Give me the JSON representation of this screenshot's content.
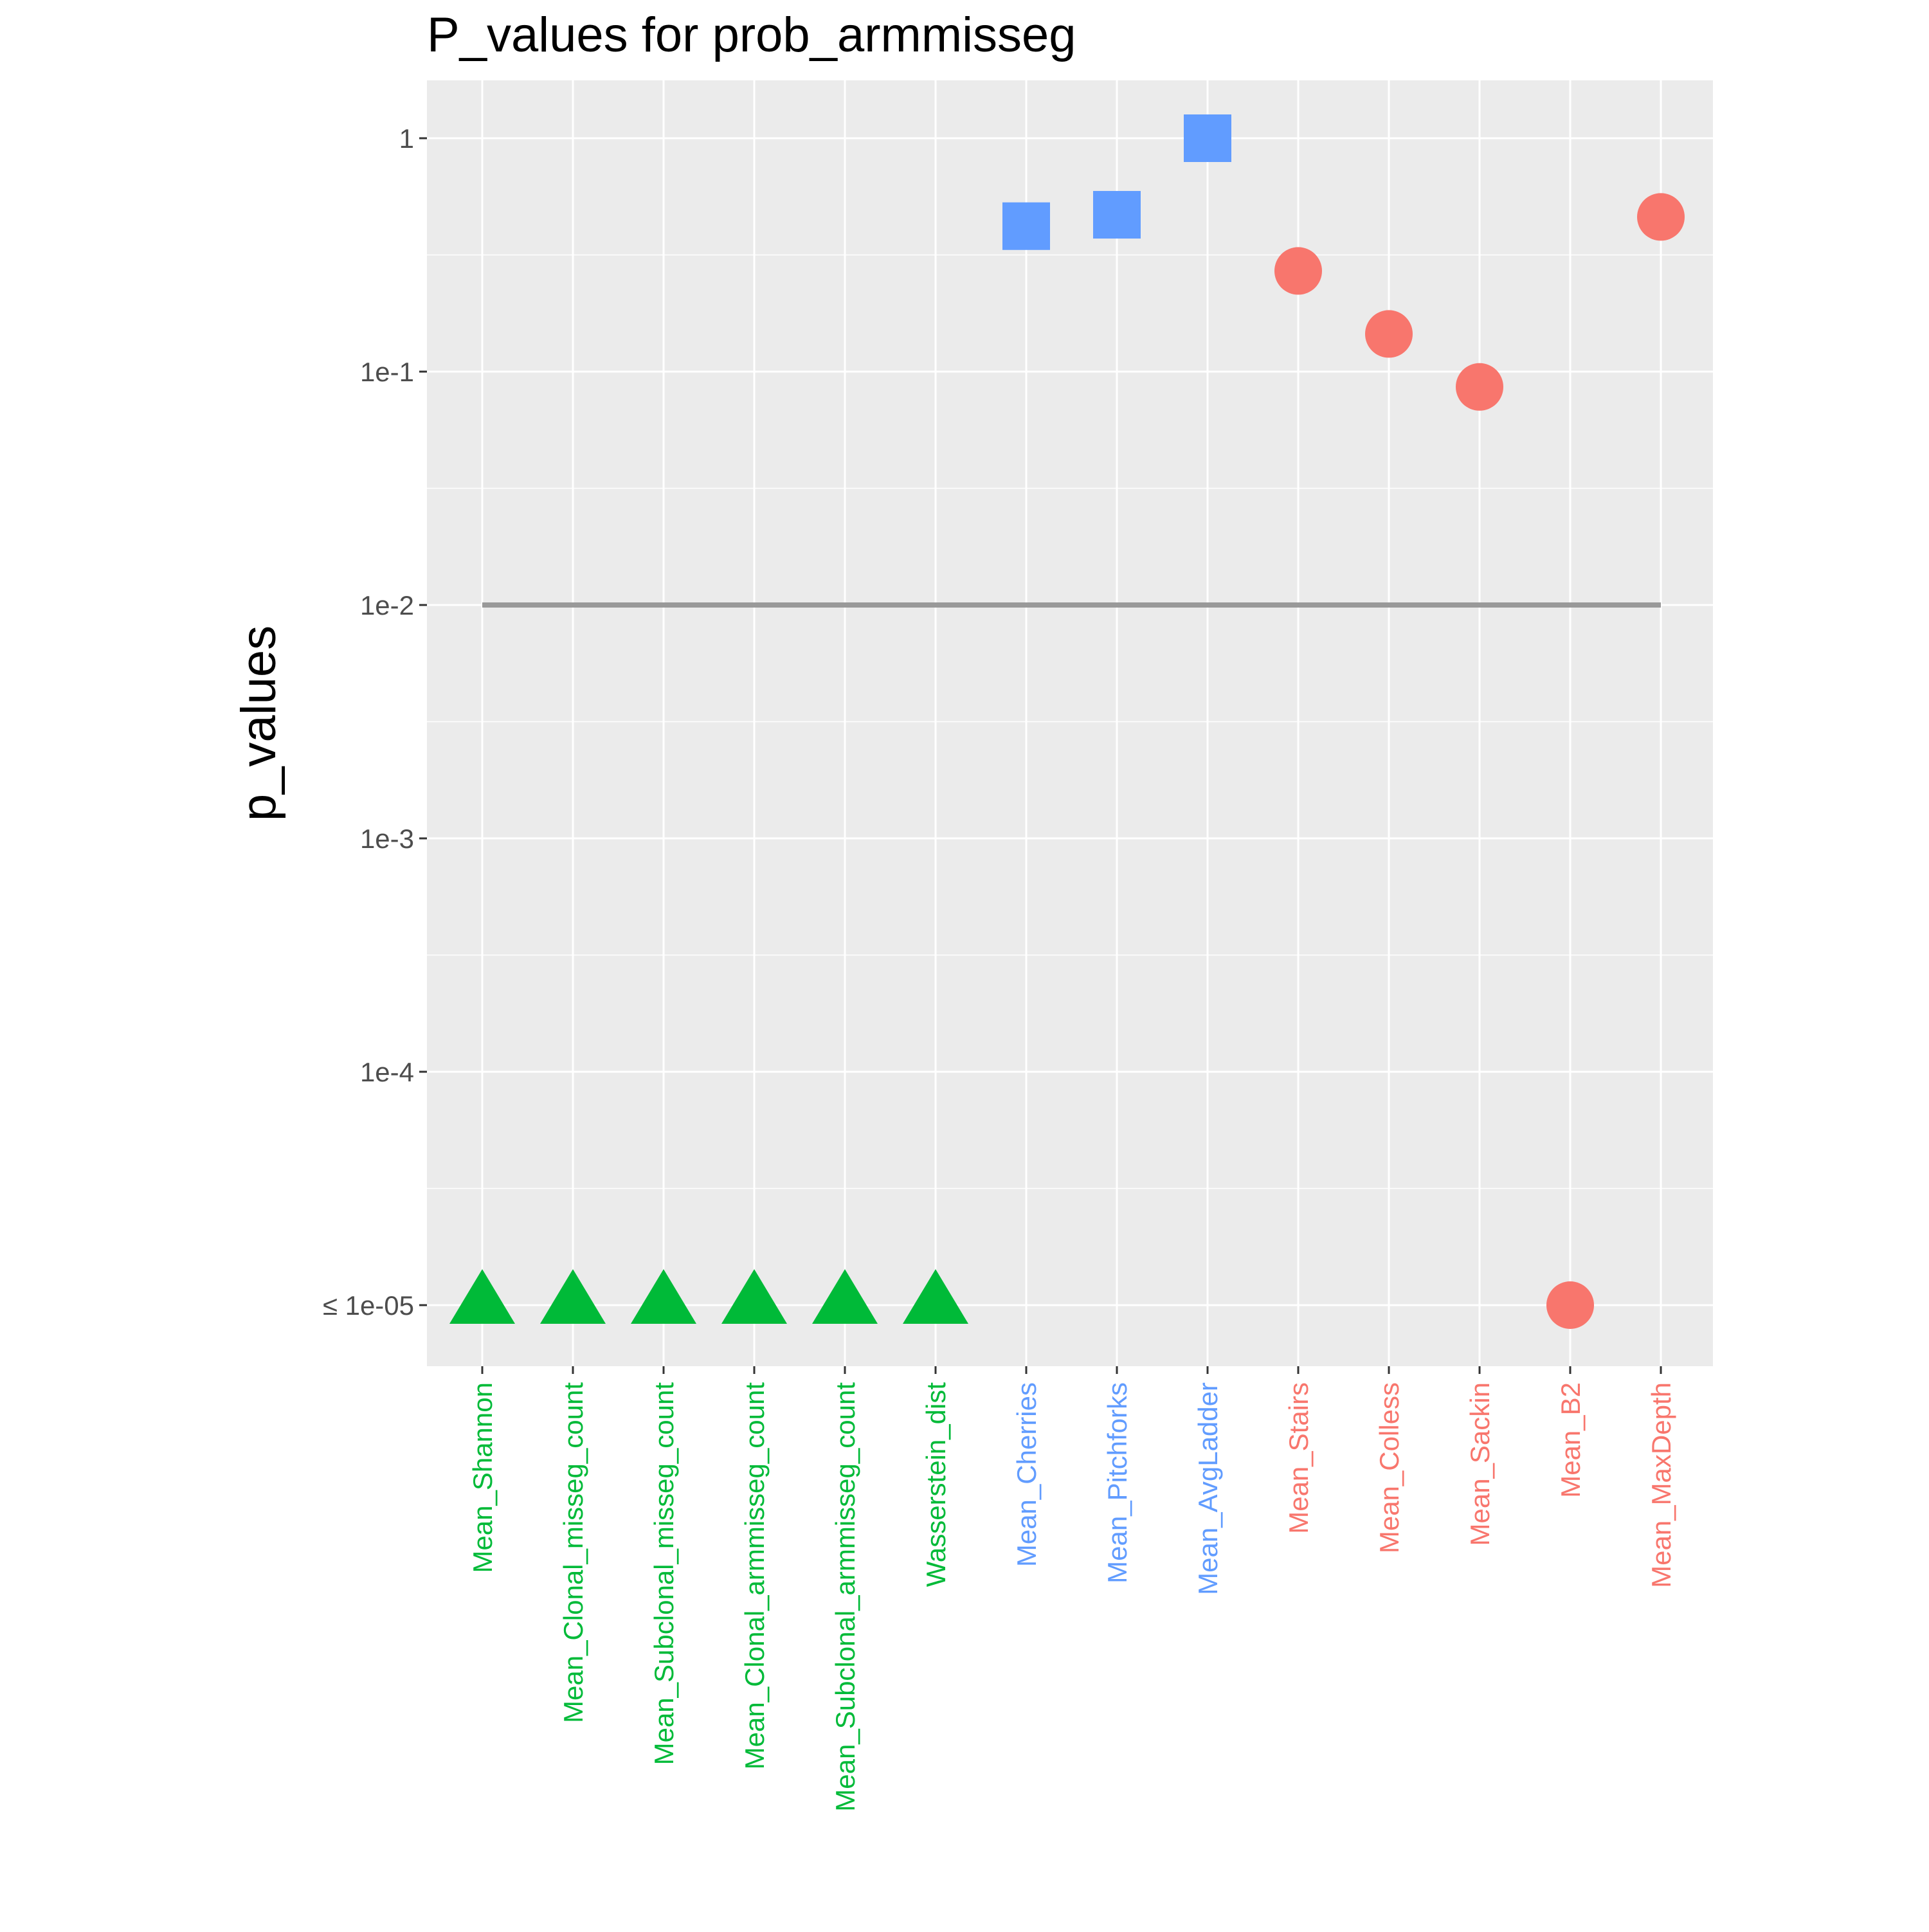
{
  "chart_data": {
    "type": "scatter",
    "title": "P_values for prob_armmisseg",
    "xlabel": "",
    "ylabel": "p_values",
    "y_scale": "log10",
    "ylim": [
      1e-05,
      1
    ],
    "y_ticks": [
      {
        "value": 1,
        "label": "1"
      },
      {
        "value": 0.1,
        "label": "1e-1"
      },
      {
        "value": 0.01,
        "label": "1e-2"
      },
      {
        "value": 0.001,
        "label": "1e-3"
      },
      {
        "value": 0.0001,
        "label": "1e-4"
      },
      {
        "value": 1e-05,
        "label": "≤ 1e-05"
      }
    ],
    "grid": true,
    "legend": "none",
    "threshold_line": {
      "value": 0.01,
      "color": "#999999"
    },
    "groups": [
      {
        "shape": "triangle",
        "color": "#00BA38"
      },
      {
        "shape": "square",
        "color": "#619CFF"
      },
      {
        "shape": "circle",
        "color": "#F8766D"
      }
    ],
    "categories": [
      "Mean_Shannon",
      "Mean_Clonal_misseg_count",
      "Mean_Subclonal_misseg_count",
      "Mean_Clonal_armmisseg_count",
      "Mean_Subclonal_armmisseg_count",
      "Wasserstein_dist",
      "Mean_Cherries",
      "Mean_Pitchforks",
      "Mean_AvgLadder",
      "Mean_Stairs",
      "Mean_Colless",
      "Mean_Sackin",
      "Mean_B2",
      "Mean_MaxDepth"
    ],
    "points": [
      {
        "category": "Mean_Shannon",
        "value": 1e-05,
        "group": 0
      },
      {
        "category": "Mean_Clonal_misseg_count",
        "value": 1e-05,
        "group": 0
      },
      {
        "category": "Mean_Subclonal_misseg_count",
        "value": 1e-05,
        "group": 0
      },
      {
        "category": "Mean_Clonal_armmisseg_count",
        "value": 1e-05,
        "group": 0
      },
      {
        "category": "Mean_Subclonal_armmisseg_count",
        "value": 1e-05,
        "group": 0
      },
      {
        "category": "Wasserstein_dist",
        "value": 1e-05,
        "group": 0
      },
      {
        "category": "Mean_Cherries",
        "value": 0.42,
        "group": 1
      },
      {
        "category": "Mean_Pitchforks",
        "value": 0.47,
        "group": 1
      },
      {
        "category": "Mean_AvgLadder",
        "value": 1.0,
        "group": 1
      },
      {
        "category": "Mean_Stairs",
        "value": 0.27,
        "group": 2
      },
      {
        "category": "Mean_Colless",
        "value": 0.145,
        "group": 2
      },
      {
        "category": "Mean_Sackin",
        "value": 0.086,
        "group": 2
      },
      {
        "category": "Mean_B2",
        "value": 1e-05,
        "group": 2
      },
      {
        "category": "Mean_MaxDepth",
        "value": 0.46,
        "group": 2
      }
    ]
  }
}
